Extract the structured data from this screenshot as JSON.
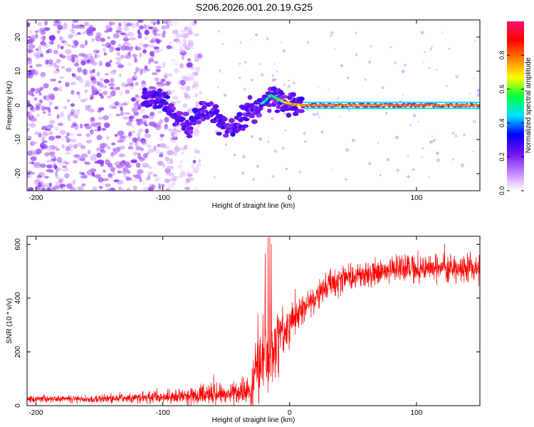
{
  "title": "S206.2026.001.20.19.G25",
  "chart_data": [
    {
      "type": "heatmap",
      "name": "spectrogram",
      "xlabel": "Height of straight line (km)",
      "ylabel": "Frequency (Hz)",
      "xlim": [
        -207,
        150
      ],
      "ylim": [
        -25,
        25
      ],
      "xticks": [
        -200,
        -100,
        0,
        100
      ],
      "yticks": [
        -20,
        -10,
        0,
        10,
        20
      ],
      "colorbar": {
        "label": "Normalized spectral amplitude",
        "range": [
          0,
          1
        ],
        "ticks": [
          "0.0",
          "0.2",
          "0.4",
          "0.6",
          "0.8"
        ],
        "colormap": [
          "#ffffff",
          "#c080ff",
          "#7010ee",
          "#0000ff",
          "#00e0ff",
          "#00ff40",
          "#ffff00",
          "#ff8000",
          "#ff0000",
          "#ff1070"
        ]
      },
      "signal_track": {
        "x": [
          -115,
          -100,
          -90,
          -80,
          -70,
          -60,
          -50,
          -45,
          -40,
          -35,
          -30,
          -25,
          -20,
          -15,
          -10,
          -5,
          0,
          10,
          40,
          80,
          120,
          150
        ],
        "y": [
          3,
          1,
          -3,
          -6,
          -2,
          -3,
          -6,
          -8,
          -5,
          -3,
          -2,
          0,
          1,
          3,
          2,
          1,
          0.5,
          0,
          0,
          0,
          0,
          0
        ],
        "amplitude": [
          0.2,
          0.2,
          0.25,
          0.3,
          0.3,
          0.35,
          0.35,
          0.35,
          0.35,
          0.3,
          0.3,
          0.4,
          0.5,
          0.55,
          0.6,
          0.7,
          0.8,
          0.85,
          0.9,
          0.9,
          0.9,
          0.9
        ]
      },
      "noise_region": {
        "x_range": [
          -207,
          -95
        ],
        "amplitude": 0.15
      }
    },
    {
      "type": "line",
      "name": "snr",
      "xlabel": "Height of straight line (km)",
      "ylabel": "SNR (10 * v/v)",
      "xlim": [
        -207,
        150
      ],
      "ylim": [
        0,
        630
      ],
      "xticks": [
        -200,
        -100,
        0,
        100
      ],
      "yticks": [
        0,
        200,
        400,
        600
      ],
      "color": "#ff0000",
      "trend": {
        "x": [
          -207,
          -150,
          -130,
          -110,
          -90,
          -70,
          -50,
          -30,
          -28,
          -25,
          -20,
          -15,
          -10,
          -5,
          0,
          10,
          20,
          30,
          40,
          60,
          80,
          100,
          120,
          150
        ],
        "y": [
          25,
          25,
          28,
          30,
          35,
          40,
          45,
          50,
          120,
          170,
          190,
          200,
          240,
          270,
          300,
          360,
          400,
          450,
          470,
          490,
          500,
          510,
          510,
          510
        ]
      },
      "noise_sigma": [
        10,
        10,
        12,
        15,
        20,
        25,
        30,
        40,
        80,
        90,
        90,
        90,
        80,
        60,
        50,
        40,
        35,
        35,
        35,
        35,
        35,
        35,
        35,
        35
      ],
      "max": 630
    }
  ]
}
